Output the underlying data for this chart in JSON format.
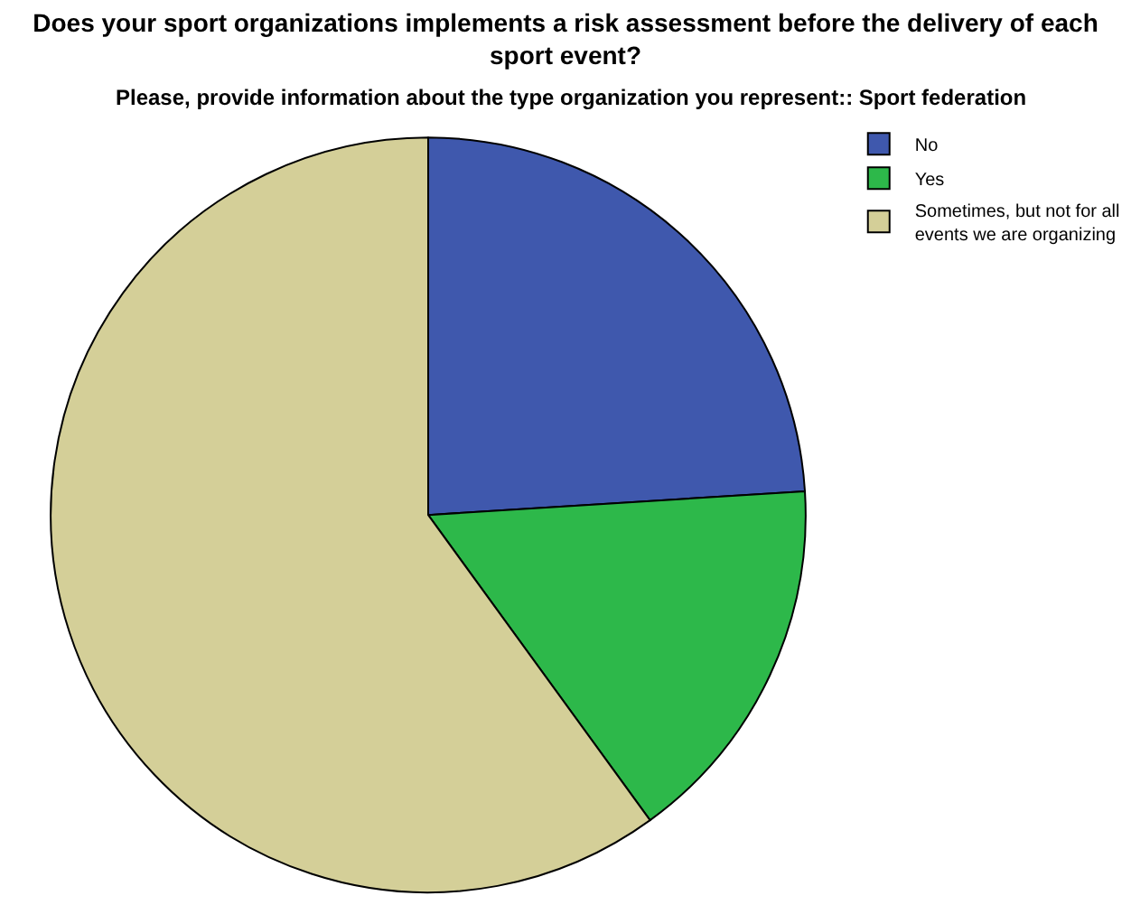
{
  "chart_data": {
    "type": "pie",
    "title": "Does your sport organizations implements a risk assessment before the delivery of each sport event?",
    "subtitle": "Please, provide information about the type organization you represent:: Sport federation",
    "categories": [
      "No",
      "Yes",
      "Sometimes, but not for all events we are organizing"
    ],
    "values": [
      24,
      16,
      60
    ],
    "colors": [
      "#3f58ad",
      "#2db84a",
      "#d4cf98"
    ],
    "legend": "top right"
  }
}
